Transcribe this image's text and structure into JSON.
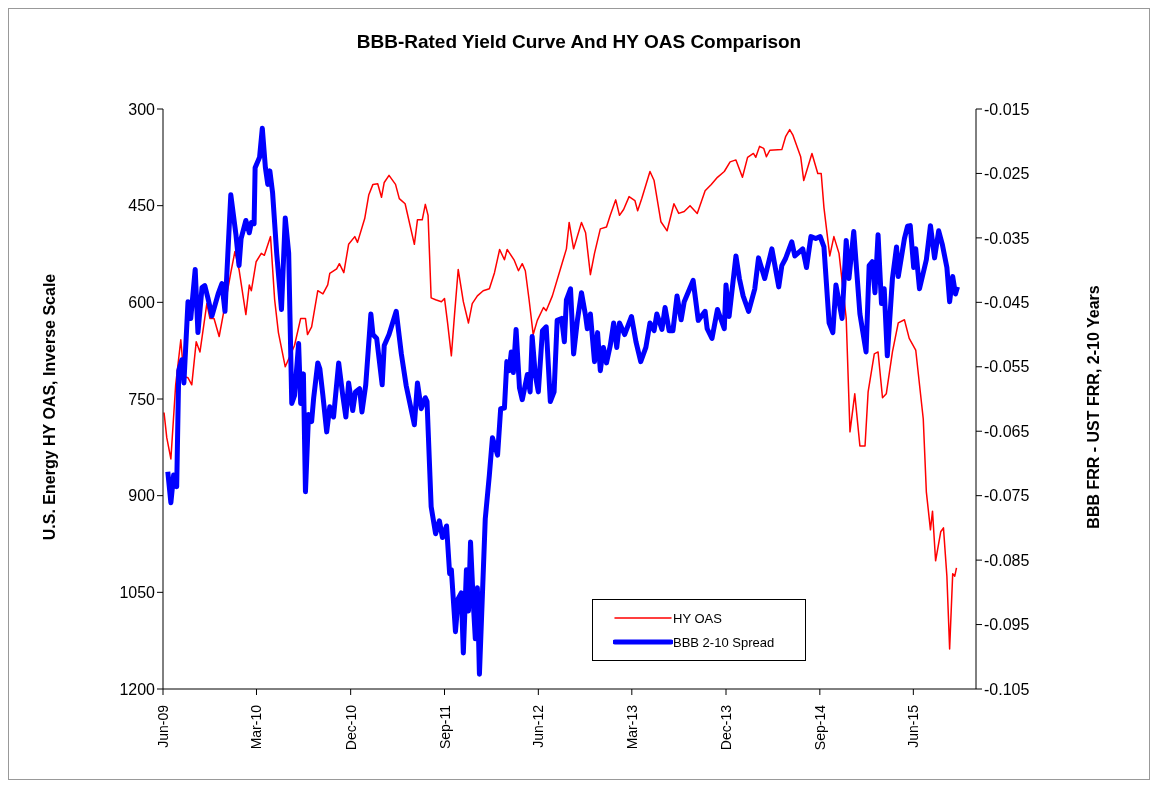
{
  "chart_data": {
    "type": "line",
    "title": "BBB-Rated Yield Curve And HY OAS Comparison",
    "ylabel": "U.S. Energy HY OAS, Inverse Scale",
    "y2label": "BBB FRR - UST FRR, 2-10 Years",
    "xlim": [
      "2009-06-01",
      "2015-12-01"
    ],
    "xticks": [
      {
        "value": "2009-06-01",
        "label": "Jun-09"
      },
      {
        "value": "2010-03-01",
        "label": "Mar-10"
      },
      {
        "value": "2010-12-01",
        "label": "Dec-10"
      },
      {
        "value": "2011-09-01",
        "label": "Sep-11"
      },
      {
        "value": "2012-06-01",
        "label": "Jun-12"
      },
      {
        "value": "2013-03-01",
        "label": "Mar-13"
      },
      {
        "value": "2013-12-01",
        "label": "Dec-13"
      },
      {
        "value": "2014-09-01",
        "label": "Sep-14"
      },
      {
        "value": "2015-06-01",
        "label": "Jun-15"
      }
    ],
    "ylim": [
      1200,
      300
    ],
    "yticks": [
      300,
      450,
      600,
      750,
      900,
      1050,
      1200
    ],
    "y2lim": [
      -0.105,
      -0.015
    ],
    "y2ticks": [
      -0.015,
      -0.025,
      -0.035,
      -0.045,
      -0.055,
      -0.065,
      -0.075,
      -0.085,
      -0.095,
      -0.105
    ],
    "grid": false,
    "legend": "bottom",
    "marker": "none",
    "line_style": "solid",
    "series": [
      {
        "name": "HY OAS",
        "color": "#ff0000",
        "x": [
          "2009-06-04",
          "2009-06-12",
          "2009-06-24",
          "2009-07-08",
          "2009-07-23",
          "2009-08-01",
          "2009-08-13",
          "2009-08-24",
          "2009-09-06",
          "2009-09-17",
          "2009-10-07",
          "2009-10-16",
          "2009-10-28",
          "2009-11-12",
          "2009-11-26",
          "2009-12-16",
          "2009-12-28",
          "2010-01-09",
          "2010-01-29",
          "2010-02-08",
          "2010-02-14",
          "2010-02-28",
          "2010-03-15",
          "2010-03-24",
          "2010-04-11",
          "2010-04-23",
          "2010-05-04",
          "2010-05-24",
          "2010-06-20",
          "2010-07-08",
          "2010-07-22",
          "2010-07-28",
          "2010-08-09",
          "2010-08-27",
          "2010-09-11",
          "2010-09-25",
          "2010-10-01",
          "2010-10-21",
          "2010-10-29",
          "2010-11-11",
          "2010-11-25",
          "2010-12-13",
          "2010-12-21",
          "2011-01-11",
          "2011-01-23",
          "2011-02-04",
          "2011-02-18",
          "2011-03-01",
          "2011-03-09",
          "2011-03-23",
          "2011-04-11",
          "2011-04-22",
          "2011-05-09",
          "2011-06-05",
          "2011-06-14",
          "2011-06-28",
          "2011-07-07",
          "2011-07-15",
          "2011-07-24",
          "2011-08-06",
          "2011-08-23",
          "2011-09-01",
          "2011-09-10",
          "2011-09-21",
          "2011-09-30",
          "2011-10-11",
          "2011-10-26",
          "2011-11-10",
          "2011-11-21",
          "2011-12-06",
          "2011-12-23",
          "2012-01-10",
          "2012-01-25",
          "2012-02-09",
          "2012-02-23",
          "2012-03-02",
          "2012-03-22",
          "2012-04-04",
          "2012-04-15",
          "2012-04-24",
          "2012-05-05",
          "2012-05-17",
          "2012-05-29",
          "2012-06-16",
          "2012-06-24",
          "2012-07-12",
          "2012-08-04",
          "2012-08-22",
          "2012-08-30",
          "2012-09-12",
          "2012-10-05",
          "2012-10-17",
          "2012-10-31",
          "2012-11-12",
          "2012-11-29",
          "2012-12-17",
          "2012-12-28",
          "2013-01-13",
          "2013-01-24",
          "2013-02-05",
          "2013-02-21",
          "2013-03-10",
          "2013-03-18",
          "2013-03-30",
          "2013-04-23",
          "2013-05-05",
          "2013-05-25",
          "2013-06-12",
          "2013-07-02",
          "2013-07-16",
          "2013-08-01",
          "2013-08-18",
          "2013-09-08",
          "2013-10-01",
          "2013-10-19",
          "2013-11-06",
          "2013-11-26",
          "2013-12-13",
          "2013-12-30",
          "2014-01-18",
          "2014-02-02",
          "2014-02-19",
          "2014-02-26",
          "2014-03-09",
          "2014-03-21",
          "2014-03-29",
          "2014-04-08",
          "2014-05-13",
          "2014-05-24",
          "2014-06-05",
          "2014-06-14",
          "2014-07-07",
          "2014-07-16",
          "2014-08-09",
          "2014-08-26",
          "2014-09-05",
          "2014-09-13",
          "2014-09-30",
          "2014-10-12",
          "2014-10-27",
          "2014-11-17",
          "2014-11-28",
          "2014-12-12",
          "2014-12-27",
          "2015-01-11",
          "2015-01-20",
          "2015-02-07",
          "2015-02-18",
          "2015-03-03",
          "2015-03-14",
          "2015-04-01",
          "2015-04-18",
          "2015-05-06",
          "2015-05-20",
          "2015-06-08",
          "2015-06-30",
          "2015-07-09",
          "2015-07-21",
          "2015-07-27",
          "2015-08-05",
          "2015-08-20",
          "2015-08-28",
          "2015-09-07",
          "2015-09-15",
          "2015-09-24",
          "2015-09-30",
          "2015-10-05"
        ],
        "values": [
          771,
          810,
          843,
          728,
          658,
          715,
          717,
          728,
          661,
          677,
          602,
          625,
          625,
          653,
          613,
          554,
          521,
          549,
          619,
          573,
          582,
          537,
          524,
          527,
          498,
          596,
          647,
          700,
          667,
          625,
          625,
          650,
          638,
          582,
          587,
          573,
          555,
          548,
          540,
          554,
          510,
          498,
          507,
          470,
          433,
          417,
          416,
          437,
          414,
          403,
          417,
          439,
          447,
          510,
          472,
          472,
          448,
          465,
          593,
          596,
          599,
          594,
          632,
          683,
          621,
          549,
          599,
          632,
          602,
          590,
          582,
          579,
          554,
          518,
          534,
          518,
          534,
          551,
          540,
          551,
          596,
          650,
          628,
          608,
          613,
          590,
          549,
          517,
          476,
          517,
          476,
          492,
          557,
          524,
          486,
          483,
          465,
          441,
          465,
          456,
          436,
          442,
          458,
          439,
          397,
          411,
          475,
          489,
          447,
          462,
          459,
          450,
          462,
          427,
          417,
          406,
          397,
          382,
          379,
          406,
          375,
          369,
          375,
          358,
          361,
          374,
          364,
          363,
          343,
          332,
          340,
          374,
          411,
          369,
          400,
          400,
          453,
          528,
          498,
          524,
          625,
          801,
          742,
          823,
          823,
          739,
          680,
          677,
          748,
          742,
          677,
          632,
          627,
          656,
          674,
          781,
          894,
          953,
          924,
          1001,
          956,
          950,
          1025,
          1138,
          1021,
          1025,
          1012
        ]
      },
      {
        "name": "BBB 2-10 Spread",
        "color": "#0000ff",
        "axis": "y2",
        "x": [
          "2009-06-15",
          "2009-06-24",
          "2009-07-02",
          "2009-07-11",
          "2009-07-17",
          "2009-07-26",
          "2009-08-01",
          "2009-08-13",
          "2009-08-21",
          "2009-09-03",
          "2009-09-11",
          "2009-09-23",
          "2009-10-01",
          "2009-10-10",
          "2009-10-22",
          "2009-11-09",
          "2009-11-20",
          "2009-11-29",
          "2009-12-16",
          "2009-12-31",
          "2010-01-09",
          "2010-01-15",
          "2010-01-29",
          "2010-02-08",
          "2010-02-14",
          "2010-02-22",
          "2010-02-25",
          "2010-03-10",
          "2010-03-18",
          "2010-03-27",
          "2010-04-03",
          "2010-04-09",
          "2010-04-17",
          "2010-04-29",
          "2010-05-13",
          "2010-05-24",
          "2010-06-03",
          "2010-06-12",
          "2010-06-20",
          "2010-07-02",
          "2010-07-08",
          "2010-07-16",
          "2010-07-22",
          "2010-07-31",
          "2010-08-09",
          "2010-08-15",
          "2010-08-27",
          "2010-09-02",
          "2010-09-11",
          "2010-09-22",
          "2010-10-01",
          "2010-10-12",
          "2010-10-27",
          "2010-11-08",
          "2010-11-17",
          "2010-11-25",
          "2010-12-07",
          "2010-12-15",
          "2010-12-27",
          "2011-01-03",
          "2011-01-14",
          "2011-01-29",
          "2011-02-04",
          "2011-02-15",
          "2011-03-03",
          "2011-03-09",
          "2011-03-23",
          "2011-04-13",
          "2011-04-28",
          "2011-05-12",
          "2011-06-05",
          "2011-06-14",
          "2011-06-25",
          "2011-07-07",
          "2011-07-12",
          "2011-07-24",
          "2011-08-06",
          "2011-08-17",
          "2011-08-26",
          "2011-09-07",
          "2011-09-16",
          "2011-09-21",
          "2011-10-03",
          "2011-10-11",
          "2011-10-20",
          "2011-10-26",
          "2011-11-04",
          "2011-11-10",
          "2011-11-16",
          "2011-11-24",
          "2011-11-30",
          "2011-12-06",
          "2011-12-12",
          "2011-12-29",
          "2012-01-10",
          "2012-01-19",
          "2012-02-03",
          "2012-02-12",
          "2012-02-23",
          "2012-03-01",
          "2012-03-08",
          "2012-03-14",
          "2012-03-20",
          "2012-03-28",
          "2012-04-07",
          "2012-04-15",
          "2012-04-30",
          "2012-05-08",
          "2012-05-14",
          "2012-05-23",
          "2012-06-01",
          "2012-06-13",
          "2012-06-24",
          "2012-07-06",
          "2012-07-17",
          "2012-07-26",
          "2012-08-08",
          "2012-08-16",
          "2012-08-22",
          "2012-09-03",
          "2012-09-12",
          "2012-09-23",
          "2012-10-05",
          "2012-10-17",
          "2012-10-22",
          "2012-10-31",
          "2012-11-12",
          "2012-11-21",
          "2012-11-29",
          "2012-12-08",
          "2012-12-17",
          "2012-12-28",
          "2013-01-07",
          "2013-01-16",
          "2013-01-24",
          "2013-02-08",
          "2013-02-28",
          "2013-03-13",
          "2013-03-27",
          "2013-04-11",
          "2013-04-23",
          "2013-05-05",
          "2013-05-13",
          "2013-05-28",
          "2013-06-06",
          "2013-06-18",
          "2013-06-29",
          "2013-07-11",
          "2013-07-23",
          "2013-08-01",
          "2013-08-12",
          "2013-08-27",
          "2013-09-11",
          "2013-10-01",
          "2013-10-07",
          "2013-10-21",
          "2013-11-06",
          "2013-11-26",
          "2013-12-01",
          "2013-12-10",
          "2013-12-30",
          "2014-01-09",
          "2014-01-20",
          "2014-02-05",
          "2014-02-23",
          "2014-03-06",
          "2014-03-24",
          "2014-04-14",
          "2014-05-04",
          "2014-05-13",
          "2014-05-24",
          "2014-06-11",
          "2014-06-20",
          "2014-07-13",
          "2014-07-24",
          "2014-08-06",
          "2014-08-20",
          "2014-09-02",
          "2014-09-13",
          "2014-09-28",
          "2014-10-09",
          "2014-10-18",
          "2014-11-05",
          "2014-11-17",
          "2014-11-25",
          "2014-12-09",
          "2014-12-27",
          "2015-01-14",
          "2015-01-23",
          "2015-02-01",
          "2015-02-09",
          "2015-02-18",
          "2015-02-28",
          "2015-03-08",
          "2015-03-17",
          "2015-04-01",
          "2015-04-13",
          "2015-04-18",
          "2015-05-06",
          "2015-05-15",
          "2015-05-23",
          "2015-06-02",
          "2015-06-08",
          "2015-06-19",
          "2015-07-09",
          "2015-07-21",
          "2015-08-02",
          "2015-08-14",
          "2015-08-25",
          "2015-09-07",
          "2015-09-15",
          "2015-09-24",
          "2015-10-02",
          "2015-10-08"
        ],
        "values": [
          -0.0713,
          -0.0761,
          -0.0718,
          -0.0736,
          -0.0556,
          -0.0539,
          -0.0575,
          -0.0449,
          -0.0475,
          -0.0399,
          -0.0497,
          -0.0427,
          -0.0424,
          -0.0443,
          -0.0471,
          -0.0437,
          -0.0421,
          -0.0464,
          -0.0283,
          -0.0345,
          -0.0393,
          -0.0351,
          -0.0323,
          -0.0342,
          -0.0326,
          -0.0328,
          -0.0241,
          -0.0225,
          -0.018,
          -0.0241,
          -0.0267,
          -0.0246,
          -0.028,
          -0.0374,
          -0.0461,
          -0.0319,
          -0.0374,
          -0.0607,
          -0.0595,
          -0.0514,
          -0.0607,
          -0.0561,
          -0.0744,
          -0.0624,
          -0.0635,
          -0.0598,
          -0.0544,
          -0.0553,
          -0.0595,
          -0.0651,
          -0.0612,
          -0.0628,
          -0.0544,
          -0.0595,
          -0.0628,
          -0.0575,
          -0.0618,
          -0.0589,
          -0.0584,
          -0.062,
          -0.0578,
          -0.0468,
          -0.05,
          -0.0506,
          -0.0578,
          -0.0517,
          -0.05,
          -0.0464,
          -0.053,
          -0.0579,
          -0.064,
          -0.0575,
          -0.0615,
          -0.0598,
          -0.0604,
          -0.0767,
          -0.0809,
          -0.0789,
          -0.0815,
          -0.0797,
          -0.0871,
          -0.0865,
          -0.0961,
          -0.091,
          -0.0901,
          -0.0994,
          -0.0865,
          -0.0929,
          -0.0822,
          -0.0916,
          -0.0972,
          -0.0893,
          -0.1027,
          -0.0786,
          -0.0718,
          -0.066,
          -0.0687,
          -0.0615,
          -0.0614,
          -0.0542,
          -0.0556,
          -0.0527,
          -0.0559,
          -0.0492,
          -0.0583,
          -0.0601,
          -0.0562,
          -0.0589,
          -0.0503,
          -0.0562,
          -0.0589,
          -0.0494,
          -0.0488,
          -0.0604,
          -0.0589,
          -0.0478,
          -0.0475,
          -0.0511,
          -0.0446,
          -0.0429,
          -0.053,
          -0.0478,
          -0.0435,
          -0.0471,
          -0.0491,
          -0.0468,
          -0.0542,
          -0.0497,
          -0.0556,
          -0.052,
          -0.0544,
          -0.0517,
          -0.0482,
          -0.052,
          -0.0482,
          -0.05,
          -0.0472,
          -0.0511,
          -0.0542,
          -0.052,
          -0.0482,
          -0.0494,
          -0.0468,
          -0.0492,
          -0.0458,
          -0.0494,
          -0.0494,
          -0.044,
          -0.0477,
          -0.0449,
          -0.0435,
          -0.0416,
          -0.0478,
          -0.0464,
          -0.0491,
          -0.0506,
          -0.0461,
          -0.0491,
          -0.0423,
          -0.0472,
          -0.0378,
          -0.0413,
          -0.044,
          -0.0464,
          -0.0429,
          -0.0381,
          -0.0413,
          -0.0367,
          -0.0426,
          -0.0393,
          -0.0382,
          -0.0356,
          -0.0378,
          -0.0367,
          -0.0396,
          -0.0348,
          -0.0351,
          -0.0348,
          -0.0364,
          -0.0482,
          -0.0497,
          -0.0423,
          -0.0475,
          -0.0354,
          -0.0413,
          -0.034,
          -0.0468,
          -0.0527,
          -0.0393,
          -0.0387,
          -0.0435,
          -0.0345,
          -0.0452,
          -0.0429,
          -0.0533,
          -0.0413,
          -0.0364,
          -0.041,
          -0.0351,
          -0.0332,
          -0.0331,
          -0.0396,
          -0.0367,
          -0.0429,
          -0.0384,
          -0.0331,
          -0.0381,
          -0.0339,
          -0.0361,
          -0.0396,
          -0.0449,
          -0.041,
          -0.0437,
          -0.0426
        ]
      }
    ]
  }
}
